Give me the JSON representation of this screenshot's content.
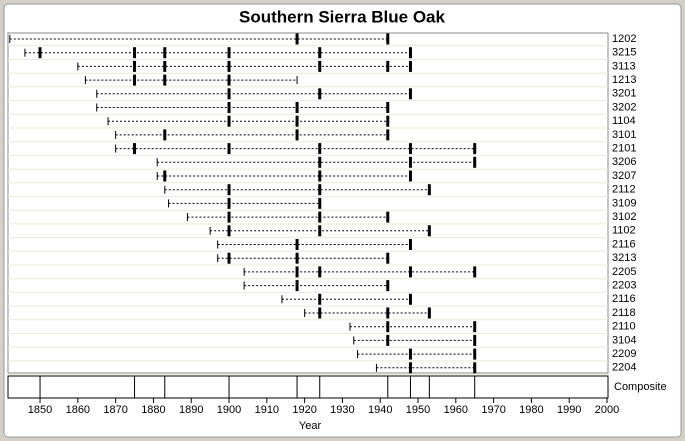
{
  "chart_data": {
    "type": "fire-history",
    "title": "Southern Sierra Blue Oak",
    "xlabel": "Year",
    "xlim": [
      1842,
      2000
    ],
    "xticks": [
      1850,
      1860,
      1870,
      1880,
      1890,
      1900,
      1910,
      1920,
      1930,
      1940,
      1950,
      1960,
      1970,
      1980,
      1990,
      2000
    ],
    "series": [
      {
        "name": "1202",
        "start": 1842,
        "end": 1942,
        "values": [
          1918,
          1942
        ]
      },
      {
        "name": "3215",
        "start": 1846,
        "end": 1948,
        "values": [
          1850,
          1875,
          1883,
          1900,
          1924,
          1948
        ]
      },
      {
        "name": "3113",
        "start": 1860,
        "end": 1948,
        "values": [
          1875,
          1883,
          1900,
          1924,
          1942,
          1948
        ]
      },
      {
        "name": "1213",
        "start": 1862,
        "end": 1918,
        "values": [
          1875,
          1883,
          1900
        ]
      },
      {
        "name": "3201",
        "start": 1865,
        "end": 1948,
        "values": [
          1900,
          1924,
          1948
        ]
      },
      {
        "name": "3202",
        "start": 1865,
        "end": 1942,
        "values": [
          1900,
          1918,
          1942
        ]
      },
      {
        "name": "1104",
        "start": 1868,
        "end": 1942,
        "values": [
          1900,
          1918,
          1942
        ]
      },
      {
        "name": "3101",
        "start": 1870,
        "end": 1942,
        "values": [
          1883,
          1918,
          1942
        ]
      },
      {
        "name": "2101",
        "start": 1870,
        "end": 1965,
        "values": [
          1875,
          1900,
          1924,
          1948,
          1965
        ]
      },
      {
        "name": "3206",
        "start": 1881,
        "end": 1965,
        "values": [
          1924,
          1948,
          1965
        ]
      },
      {
        "name": "3207",
        "start": 1881,
        "end": 1948,
        "values": [
          1883,
          1924,
          1948
        ]
      },
      {
        "name": "2112",
        "start": 1883,
        "end": 1953,
        "values": [
          1900,
          1924,
          1953
        ]
      },
      {
        "name": "3109",
        "start": 1884,
        "end": 1924,
        "values": [
          1900,
          1924
        ]
      },
      {
        "name": "3102",
        "start": 1889,
        "end": 1942,
        "values": [
          1900,
          1924,
          1942
        ]
      },
      {
        "name": "1102",
        "start": 1895,
        "end": 1953,
        "values": [
          1900,
          1924,
          1953
        ]
      },
      {
        "name": "2116",
        "start": 1897,
        "end": 1948,
        "values": [
          1918,
          1948
        ]
      },
      {
        "name": "3213",
        "start": 1897,
        "end": 1942,
        "values": [
          1900,
          1918,
          1942
        ]
      },
      {
        "name": "2205",
        "start": 1904,
        "end": 1965,
        "values": [
          1918,
          1924,
          1948,
          1965
        ]
      },
      {
        "name": "2203",
        "start": 1904,
        "end": 1942,
        "values": [
          1918,
          1942
        ]
      },
      {
        "name": "2116",
        "start": 1914,
        "end": 1948,
        "values": [
          1924,
          1948
        ]
      },
      {
        "name": "2118",
        "start": 1920,
        "end": 1953,
        "values": [
          1924,
          1942,
          1953
        ]
      },
      {
        "name": "2110",
        "start": 1932,
        "end": 1965,
        "values": [
          1942,
          1965
        ]
      },
      {
        "name": "3104",
        "start": 1933,
        "end": 1965,
        "values": [
          1942,
          1965
        ]
      },
      {
        "name": "2209",
        "start": 1934,
        "end": 1965,
        "values": [
          1948,
          1965
        ]
      },
      {
        "name": "2204",
        "start": 1939,
        "end": 1965,
        "values": [
          1948,
          1965
        ]
      }
    ],
    "composite": {
      "name": "Composite",
      "values": [
        1850,
        1875,
        1883,
        1900,
        1918,
        1924,
        1942,
        1948,
        1953,
        1965
      ]
    }
  }
}
